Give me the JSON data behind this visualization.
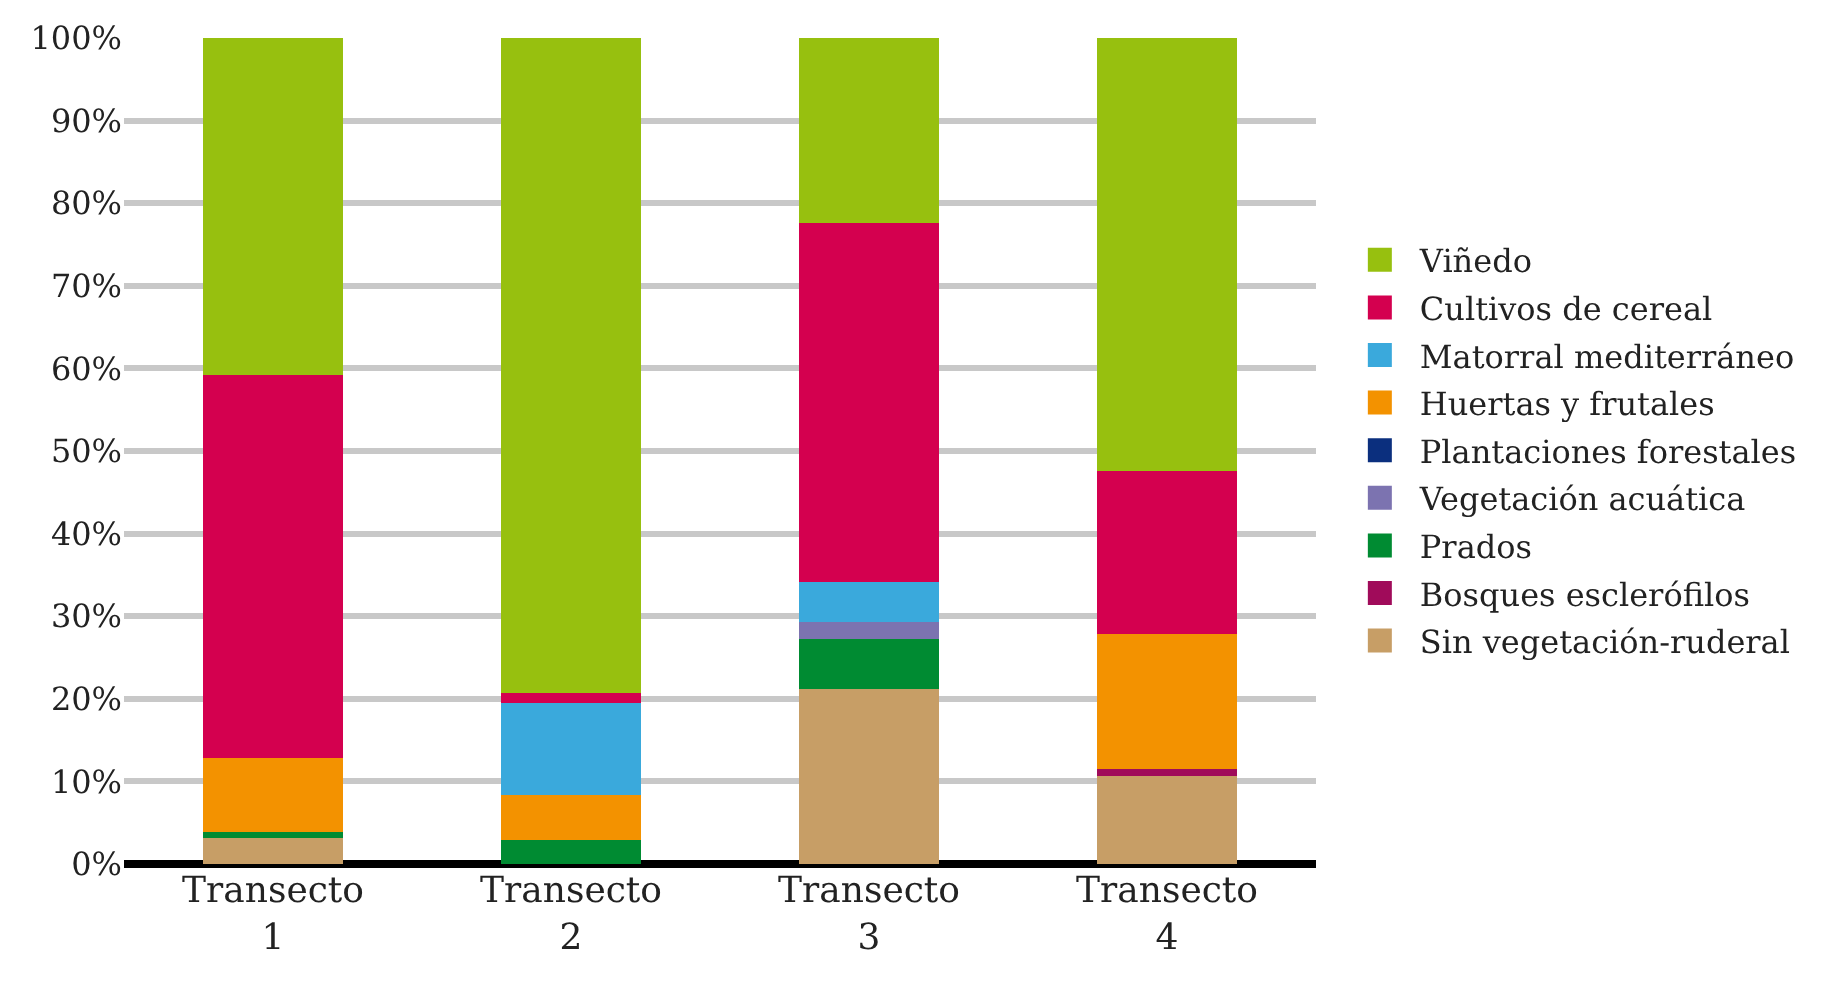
{
  "chart_data": {
    "type": "bar",
    "stacked": true,
    "categories": [
      "Transecto 1",
      "Transecto 2",
      "Transecto 3",
      "Transecto 4"
    ],
    "series": [
      {
        "name": "Sin vegetación-ruderal",
        "color": "#c79e66",
        "values": [
          3.1,
          0,
          21.2,
          10.6
        ]
      },
      {
        "name": "Bosques esclerófilos",
        "color": "#a00b5a",
        "values": [
          0,
          0,
          0,
          0.9
        ]
      },
      {
        "name": "Prados",
        "color": "#008b32",
        "values": [
          0.8,
          2.9,
          6.0,
          0
        ]
      },
      {
        "name": "Vegetación acuática",
        "color": "#7c73b0",
        "values": [
          0,
          0,
          2.1,
          0
        ]
      },
      {
        "name": "Plantaciones forestales",
        "color": "#0b2f7e",
        "values": [
          0,
          0,
          0,
          0
        ]
      },
      {
        "name": "Huertas y frutales",
        "color": "#f39200",
        "values": [
          8.9,
          5.5,
          0,
          16.4
        ]
      },
      {
        "name": "Matorral mediterráneo",
        "color": "#3aa9dc",
        "values": [
          0,
          11.1,
          4.8,
          0
        ]
      },
      {
        "name": "Cultivos de cereal",
        "color": "#d4004f",
        "values": [
          46.4,
          1.2,
          43.5,
          19.7
        ]
      },
      {
        "name": "Viñedo",
        "color": "#97c00f",
        "values": [
          40.8,
          79.3,
          22.4,
          52.4
        ]
      }
    ],
    "ylim": [
      0,
      100
    ],
    "yticks": [
      {
        "value": 0,
        "label": "0%"
      },
      {
        "value": 10,
        "label": "10%"
      },
      {
        "value": 20,
        "label": "20%"
      },
      {
        "value": 30,
        "label": "30%"
      },
      {
        "value": 40,
        "label": "40%"
      },
      {
        "value": 50,
        "label": "50%"
      },
      {
        "value": 60,
        "label": "60%"
      },
      {
        "value": 70,
        "label": "70%"
      },
      {
        "value": 80,
        "label": "80%"
      },
      {
        "value": 90,
        "label": "90%"
      },
      {
        "value": 100,
        "label": "100%"
      }
    ],
    "grid": "y",
    "legend": "right"
  }
}
